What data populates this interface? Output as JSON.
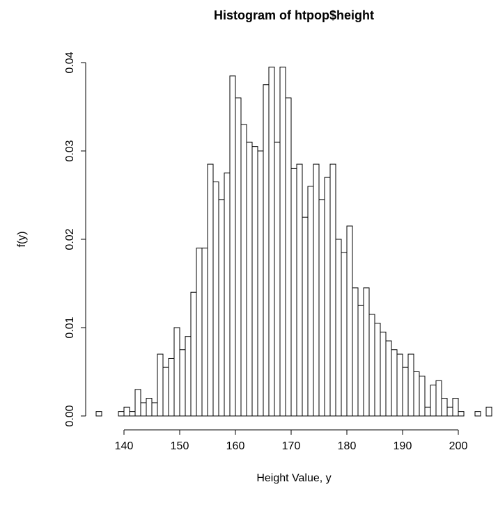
{
  "chart_data": {
    "type": "histogram",
    "title": "Histogram of htpop$height",
    "xlabel": "Height Value, y",
    "ylabel": "f(y)",
    "bins": [
      135,
      136,
      137,
      138,
      139,
      140,
      141,
      142,
      143,
      144,
      145,
      146,
      147,
      148,
      149,
      150,
      151,
      152,
      153,
      154,
      155,
      156,
      157,
      158,
      159,
      160,
      161,
      162,
      163,
      164,
      165,
      166,
      167,
      168,
      169,
      170,
      171,
      172,
      173,
      174,
      175,
      176,
      177,
      178,
      179,
      180,
      181,
      182,
      183,
      184,
      185,
      186,
      187,
      188,
      189,
      190,
      191,
      192,
      193,
      194,
      195,
      196,
      197,
      198,
      199,
      200,
      201,
      202,
      203,
      204,
      205,
      206
    ],
    "values": [
      0.0005,
      0,
      0,
      0,
      0.0005,
      0.001,
      0.0005,
      0.003,
      0.0015,
      0.002,
      0.0015,
      0.007,
      0.0055,
      0.0065,
      0.01,
      0.0075,
      0.009,
      0.014,
      0.019,
      0.019,
      0.0285,
      0.0265,
      0.0245,
      0.0275,
      0.0385,
      0.036,
      0.033,
      0.031,
      0.0305,
      0.03,
      0.0375,
      0.0395,
      0.031,
      0.0395,
      0.036,
      0.028,
      0.0285,
      0.0225,
      0.026,
      0.0285,
      0.0245,
      0.027,
      0.0285,
      0.02,
      0.0185,
      0.0215,
      0.0145,
      0.0125,
      0.0145,
      0.0115,
      0.0105,
      0.0095,
      0.0085,
      0.0075,
      0.007,
      0.0055,
      0.007,
      0.005,
      0.0045,
      0.001,
      0.0035,
      0.004,
      0.002,
      0.001,
      0.002,
      0.0005,
      0,
      0,
      0.0005,
      0,
      0.001
    ],
    "color": "#ffffff",
    "xlim": [
      135,
      206
    ],
    "xticks": [
      140,
      150,
      160,
      170,
      180,
      190,
      200
    ],
    "ylim": [
      0,
      0.04
    ],
    "yticks": [
      {
        "value": 0,
        "label": "0.00"
      },
      0.01,
      0.02,
      0.03,
      0.04
    ]
  }
}
